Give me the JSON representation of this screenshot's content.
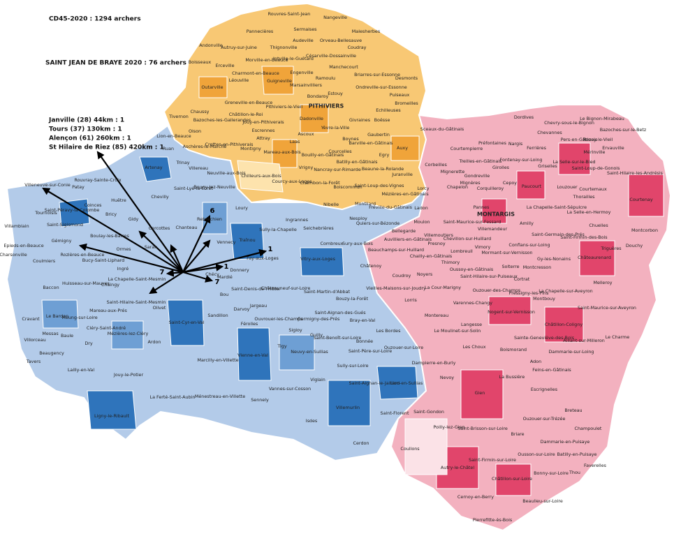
{
  "header": {
    "total": "CD45-2020 : 1294 archers",
    "club": "SAINT JEAN DE BRAYE 2020 : 76 archers"
  },
  "distant_origins": [
    "Janville (28) 44km : 1",
    "Tours (37) 130km : 1",
    "Alençon (61) 260km : 1",
    "St Hilaire de Riez (85) 420km : 1"
  ],
  "arrow_counts": [
    6,
    1,
    1,
    7,
    7
  ],
  "communes": {
    "pithiviers": [
      "Rouvres-Saint-Jean",
      "Nangeville",
      "Pannecières",
      "Sermaises",
      "Malesherbes",
      "Audeville",
      "Orveau-Bellesauve",
      "Andonville",
      "Autruy-sur-Juine",
      "Thignonville",
      "Coudray",
      "Boisseaux",
      "Erceville",
      "Morville-en-Beauce",
      "Intville-le-Guétard",
      "Césarville-Dossainville",
      "Charmont-en-Beauce",
      "Engenville",
      "Manchecourt",
      "Léouville",
      "Guigneville",
      "Outarville",
      "Ramoulu",
      "Pithiviers-le-Vieil",
      "PITHIVIERS",
      "Desmonts",
      "Briarres-sur-Essonne",
      "Ondreville-sur-Essonne",
      "Puiseaux",
      "Estouy",
      "Bondaroy",
      "Marsainvilliers",
      "Greneville-en-Beauce",
      "Chaussy",
      "Bazoches-les-Gallerandes",
      "Châtillon-le-Roi",
      "Jouy-en-Pithiverais",
      "Dadonville",
      "Escrennes",
      "Yèvre-la-Ville",
      "Echilleuses",
      "Bromeilles",
      "Tivernon",
      "Oison",
      "Givraines",
      "Boësse",
      "Ascoux",
      "Crottes-en-Pithiverais",
      "Attray",
      "Laas",
      "Gaubertin",
      "Boynes",
      "Aschères-le-Marché",
      "Montigny",
      "Mareau-aux-Bois",
      "Bouilly-en-Gâtinais",
      "Courcelles",
      "Barville-en-Gâtinais",
      "Auxy",
      "Egry",
      "Vrigny",
      "Chilleurs-aux-Bois",
      "Nancray-sur-Rimarde",
      "Batilly-en-Gâtinais",
      "Beaune-la-Rolande",
      "Juranville",
      "Courcy-aux-Loges",
      "Chambon-la-Forêt",
      "Boiscommun",
      "Saint-Loup-des-Vignes",
      "Nibelle",
      "Montliard",
      "Lorcy"
    ],
    "orleans": [
      "Lion-en-Beauce",
      "Ruan",
      "Artenay",
      "Trinay",
      "Villereau",
      "Neuville-aux-Bois",
      "Bougy-lez-Neuville",
      "Saint-Lyé-la-Forêt",
      "Chevilly",
      "Loury",
      "Villeneuve-sur-Conie",
      "Patay",
      "Rouvray-Sainte-Croix",
      "Tournoisis",
      "Coinces",
      "Huêtre",
      "Villamblain",
      "Saint-Péravy-la-Colombe",
      "Saint-Sigismond",
      "Bricy",
      "Gidy",
      "Cercottes",
      "Chanteau",
      "Rebréchien",
      "Ingrannes",
      "Sully-la-Chapelle",
      "Seichebrières",
      "Epieds-en-Beauce",
      "Gémigny",
      "Boulay-les-Barres",
      "Ormes",
      "Saran",
      "Vennecy",
      "Traînou",
      "Combreux",
      "Sury-aux-Bois",
      "Charsonville",
      "Coulmiers",
      "Rozières-en-Beauce",
      "Bucy-Saint-Liphard",
      "Ingré",
      "Fay-aux-Loges",
      "Vitry-aux-Loges",
      "Châtenoy",
      "Baccon",
      "Huisseau-sur-Mauves",
      "Chaingy",
      "La Chapelle-Saint-Mesmin",
      "Donnery",
      "Mardié",
      "Chécy",
      "Saint-Denis-de-l'Hôtel",
      "Châteauneuf-sur-Loire",
      "Saint-Martin-d'Abbat",
      "Bouzy-la-Forêt",
      "Olivet",
      "Saint-Cyr-en-Val",
      "Bou",
      "Sandillon",
      "Darvoy",
      "Jargeau",
      "Férolles",
      "Ouvrouer-les-Champs",
      "Germigny-des-Prés",
      "Saint-Aignan-des-Gués",
      "Bray-en-Val",
      "Cravant",
      "Le Bardon",
      "Meung-sur-Loire",
      "Mareau-aux-Prés",
      "Saint-Hilaire-Saint-Mesmin",
      "Villorceau",
      "Messas",
      "Baule",
      "Cléry-Saint-André",
      "Mézières-lez-Cléry",
      "Dry",
      "Ardon",
      "Sigloy",
      "Guilly",
      "Saint-Benoît-sur-Loire",
      "Les Bordes",
      "Tigy",
      "Neuvy-en-Sullias",
      "Bonnée",
      "Saint-Père-sur-Loire",
      "Ouzouer-sur-Loire",
      "Tavers",
      "Beaugency",
      "Lailly-en-Val",
      "Jouy-le-Potier",
      "Marcilly-en-Villette",
      "Vienne-en-Val",
      "Sully-sur-Loire",
      "Dampierre-en-Burly",
      "Viglain",
      "Saint-Aignan-le-Jaillard",
      "Lion-en-Sullias",
      "La Ferté-Saint-Aubin",
      "Ménestreau-en-Villette",
      "Vannes-sur-Cosson",
      "Sennely",
      "Villemurlin",
      "Saint-Florent",
      "Ligny-le-Ribault",
      "Isdes",
      "Cerdon"
    ],
    "montargis": [
      "Dordives",
      "Chevry-sous-le-Bignon",
      "Le Bignon-Mirabeau",
      "Bazoches-sur-le-Betz",
      "Chevannes",
      "Pers-en-Gâtinais",
      "Rozoy-le-Vieil",
      "Sceaux-du-Gâtinais",
      "Préfontaines",
      "Nargis",
      "Ferrières",
      "Mérinville",
      "Ervauville",
      "Courtempierre",
      "Treilles-en-Gâtinais",
      "Fontenay-sur-Loing",
      "Griselles",
      "La Selle-sur-le-Bied",
      "Saint-Loup-de-Gonois",
      "Saint-Hilaire-les-Andrésis",
      "Corbeilles",
      "Gondreville",
      "Girolles",
      "Cepoy",
      "Paucourt",
      "Louzouer",
      "Courtemaux",
      "Courtenay",
      "Mignerette",
      "Chapelon",
      "Mignères",
      "Corquilleroy",
      "Thorailles",
      "Mézières-en-Gâtinais",
      "Fréville-du-Gâtinais",
      "Ladon",
      "Pannes",
      "MONTARGIS",
      "La Chapelle-Saint-Sépulcre",
      "La Selle-en-Hermoy",
      "Nesploy",
      "Quiers-sur-Bézonde",
      "Moulon",
      "Saint-Maurice-sur-Fessard",
      "Chuelles",
      "Montcorbon",
      "Bellegarde",
      "Villemoutiers",
      "Villemandeur",
      "Amilly",
      "Saint-Germain-des-Prés",
      "Saint-Firmin-des-Bois",
      "Auvilliers-en-Gâtinais",
      "Chevillon-sur-Huillard",
      "Conflans-sur-Loing",
      "Triguères",
      "Douchy",
      "Presnoy",
      "Beauchamps-sur-Huillard",
      "Lombreuil",
      "Vimory",
      "Mormant-sur-Vernisson",
      "Gy-les-Nonains",
      "Châteaurenard",
      "Chailly-en-Gâtinais",
      "Thimory",
      "Solterre",
      "Montcresson",
      "Coudroy",
      "Noyers",
      "Oussoy-en-Gâtinais",
      "Saint-Hilaire-sur-Puiseaux",
      "Cortrat",
      "Melleroy",
      "Vieilles-Maisons-sur-Joudry",
      "La Cour-Marigny",
      "Ouzouer-des-Champs",
      "Pressigny-les-Pins",
      "Montbouy",
      "La Chapelle-sur-Aveyron",
      "Lorris",
      "Varennes-Changy",
      "Saint-Maurice-sur-Aveyron",
      "Nogent-sur-Vernisson",
      "Montereau",
      "Châtillon-Coligny",
      "Le Moulinet-sur-Solin",
      "Langesse",
      "Le Charme",
      "Sainte-Geneviève-des-Bois",
      "Aillant-sur-Milleron",
      "Dammarie-sur-Loing",
      "Les Choux",
      "Boismorand",
      "Adon",
      "Feins-en-Gâtinais",
      "Nevoy",
      "La Bussière",
      "Escrignelles",
      "Gien",
      "Breteau",
      "Saint-Gondon",
      "Ouzouer-sur-Trézée",
      "Champoulet",
      "Poilly-lez-Gien",
      "Saint-Brisson-sur-Loire",
      "Briare",
      "Dammarie-en-Puisaye",
      "Coullons",
      "Ousson-sur-Loire",
      "Batilly-en-Puisaye",
      "Faverelles",
      "Autry-le-Châtel",
      "Saint-Firmin-sur-Loire",
      "Bonny-sur-Loire",
      "Thou",
      "Châtillon-sur-Loire",
      "Cernoy-en-Berry",
      "Beaulieu-sur-Loire",
      "Pierrefitte-ès-Bois"
    ]
  }
}
